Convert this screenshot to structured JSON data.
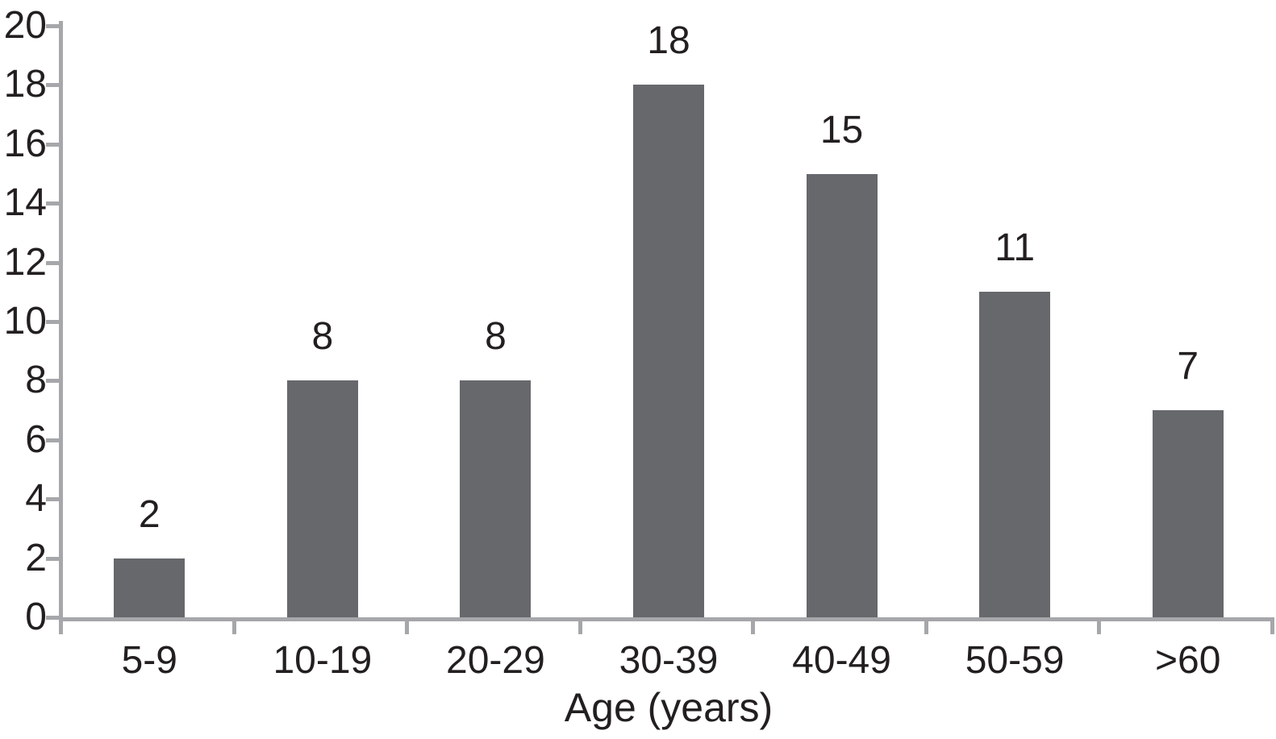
{
  "chart_data": {
    "type": "bar",
    "categories": [
      "5-9",
      "10-19",
      "20-29",
      "30-39",
      "40-49",
      "50-59",
      ">60"
    ],
    "values": [
      2,
      8,
      8,
      18,
      15,
      11,
      7
    ],
    "bar_value_labels": [
      "2",
      "8",
      "8",
      "18",
      "15",
      "11",
      "7"
    ],
    "title": "",
    "xlabel": "Age (years)",
    "ylabel": "",
    "ylim": [
      0,
      20
    ],
    "yticks": [
      0,
      2,
      4,
      6,
      8,
      10,
      12,
      14,
      16,
      18,
      20
    ],
    "grid": false,
    "legend": false,
    "layout_hints": {
      "ytick_side": "left",
      "xtick_marks": "category-boundaries",
      "value_labels": "above-bars"
    },
    "colors": {
      "bar": "#66686c",
      "axis": "#a5a7aa",
      "text": "#231f20",
      "background": "#ffffff"
    }
  }
}
